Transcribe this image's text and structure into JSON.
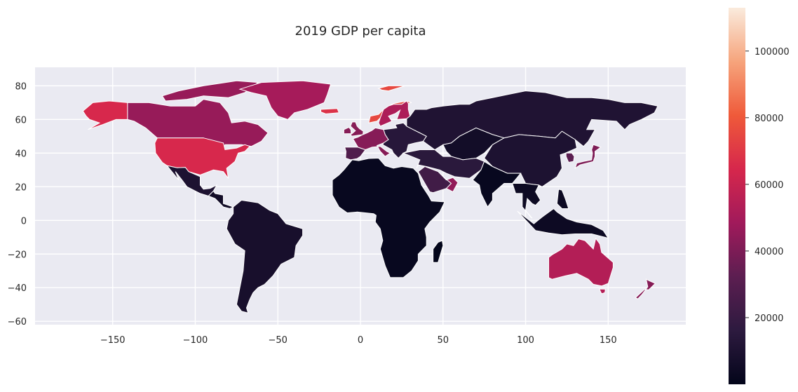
{
  "chart_data": {
    "type": "choropleth",
    "title": "2019 GDP per capita",
    "xlabel": "",
    "ylabel": "",
    "xlim": [
      -197,
      197
    ],
    "ylim": [
      -62,
      91
    ],
    "xticks": [
      -150,
      -100,
      -50,
      0,
      50,
      100,
      150
    ],
    "yticks": [
      -60,
      -40,
      -20,
      0,
      20,
      40,
      60,
      80
    ],
    "grid": true,
    "colorbar": {
      "min": 0,
      "max": 113000,
      "ticks": [
        20000,
        40000,
        60000,
        80000,
        100000
      ],
      "colormap": "rocket",
      "colors": [
        "#03051a",
        "#2d1a3f",
        "#5c1e51",
        "#a11a5b",
        "#d6274c",
        "#ef5a3a",
        "#f6a47c",
        "#faebdd"
      ]
    },
    "regions": [
      {
        "name": "United States",
        "value": 65000
      },
      {
        "name": "Canada",
        "value": 46000
      },
      {
        "name": "Alaska",
        "value": 65000
      },
      {
        "name": "Greenland",
        "value": 50000
      },
      {
        "name": "Mexico",
        "value": 10000
      },
      {
        "name": "Central America & Caribbean",
        "value": 6000
      },
      {
        "name": "South America",
        "value": 8000
      },
      {
        "name": "Western Europe",
        "value": 42000
      },
      {
        "name": "Iberia",
        "value": 28000
      },
      {
        "name": "Norway",
        "value": 75000
      },
      {
        "name": "Nordics",
        "value": 52000
      },
      {
        "name": "Eastern Europe",
        "value": 14000
      },
      {
        "name": "Svalbard",
        "value": 75000
      },
      {
        "name": "Iceland",
        "value": 68000
      },
      {
        "name": "Russia",
        "value": 11000
      },
      {
        "name": "Central Asia",
        "value": 6000
      },
      {
        "name": "China & Mongolia",
        "value": 10000
      },
      {
        "name": "Japan",
        "value": 40000
      },
      {
        "name": "Korea",
        "value": 32000
      },
      {
        "name": "Middle East",
        "value": 15000
      },
      {
        "name": "Saudi Arabia",
        "value": 23000
      },
      {
        "name": "Gulf States",
        "value": 45000
      },
      {
        "name": "India",
        "value": 2000
      },
      {
        "name": "Southeast Asia",
        "value": 4000
      },
      {
        "name": "Africa",
        "value": 2000
      },
      {
        "name": "Madagascar",
        "value": 500
      },
      {
        "name": "Australia",
        "value": 54000
      },
      {
        "name": "New Zealand",
        "value": 42000
      }
    ]
  }
}
